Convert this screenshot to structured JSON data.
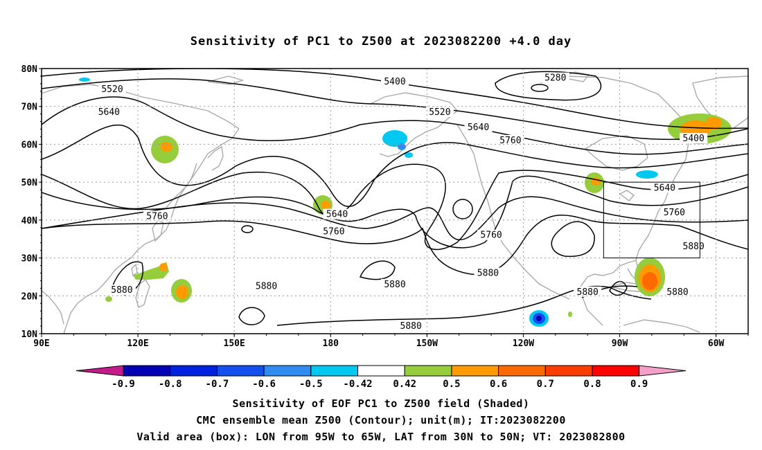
{
  "title": "Sensitivity of PC1 to Z500 at 2023082200 +4.0 day",
  "map": {
    "lat_labels": [
      "80N",
      "70N",
      "60N",
      "50N",
      "40N",
      "30N",
      "20N",
      "10N"
    ],
    "lon_labels": [
      "90E",
      "120E",
      "150E",
      "180",
      "150W",
      "120W",
      "90W",
      "60W"
    ],
    "lat_values": [
      80,
      70,
      60,
      50,
      40,
      30,
      20,
      10
    ],
    "lon_values": [
      90,
      120,
      150,
      180,
      210,
      240,
      270,
      300
    ],
    "lon_range": [
      90,
      310
    ],
    "lat_range": [
      10,
      80
    ],
    "valid_box": {
      "lon": [
        265,
        295
      ],
      "lat": [
        30,
        50
      ]
    },
    "contour_labels": [
      {
        "text": "5280",
        "lon": 250,
        "lat": 77.5
      },
      {
        "text": "5400",
        "lon": 200,
        "lat": 76.5
      },
      {
        "text": "5400",
        "lon": 293,
        "lat": 61.5
      },
      {
        "text": "5520",
        "lon": 112,
        "lat": 74.5
      },
      {
        "text": "5520",
        "lon": 214,
        "lat": 68.5
      },
      {
        "text": "5640",
        "lon": 111,
        "lat": 68.5
      },
      {
        "text": "5640",
        "lon": 226,
        "lat": 64.5
      },
      {
        "text": "5640",
        "lon": 182,
        "lat": 41.5
      },
      {
        "text": "5640",
        "lon": 284,
        "lat": 48.5
      },
      {
        "text": "5760",
        "lon": 236,
        "lat": 61.0
      },
      {
        "text": "5760",
        "lon": 126,
        "lat": 41.0
      },
      {
        "text": "5760",
        "lon": 181,
        "lat": 37.0
      },
      {
        "text": "5760",
        "lon": 230,
        "lat": 36.0
      },
      {
        "text": "5760",
        "lon": 287,
        "lat": 42.0
      },
      {
        "text": "5880",
        "lon": 115,
        "lat": 21.5
      },
      {
        "text": "5880",
        "lon": 160,
        "lat": 22.5
      },
      {
        "text": "5880",
        "lon": 200,
        "lat": 23.0
      },
      {
        "text": "5880",
        "lon": 229,
        "lat": 26.0
      },
      {
        "text": "5880",
        "lon": 260,
        "lat": 21.0
      },
      {
        "text": "5880",
        "lon": 288,
        "lat": 21.0
      },
      {
        "text": "5880",
        "lon": 293,
        "lat": 33.0
      },
      {
        "text": "5880",
        "lon": 205,
        "lat": 12.0
      }
    ]
  },
  "colorbar": {
    "labels": [
      "-0.9",
      "-0.8",
      "-0.7",
      "-0.6",
      "-0.5",
      "-0.42",
      "0.42",
      "0.5",
      "0.6",
      "0.7",
      "0.8",
      "0.9"
    ],
    "colors": [
      "#0000b4",
      "#0022e0",
      "#1450f0",
      "#2f8cf0",
      "#00c8f0",
      "#ffffff",
      "#96cd3c",
      "#ff9a00",
      "#ff6a00",
      "#ff3c00",
      "#ff0000"
    ],
    "low_end": "#c41a8c",
    "high_end": "#f4a0c8"
  },
  "captions": [
    "Sensitivity of EOF PC1 to Z500 field (Shaded)",
    "CMC ensemble mean Z500 (Contour); unit(m); IT:2023082200",
    "Valid area (box): LON from 95W to 65W, LAT from 30N to 50N; VT: 2023082800"
  ]
}
